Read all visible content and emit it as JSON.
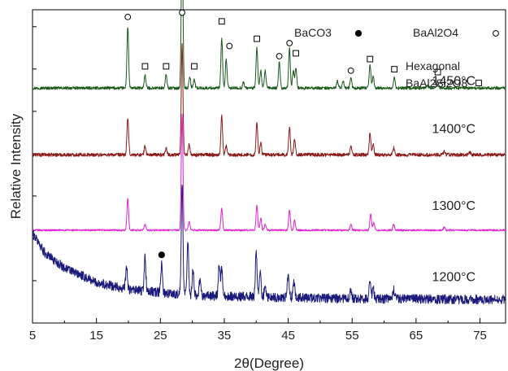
{
  "chart_data": {
    "type": "line",
    "title": "",
    "xlabel": "2θ(Degree)",
    "ylabel": "Relative Intensity",
    "xlim": [
      5,
      79
    ],
    "xticks": [
      5,
      15,
      25,
      35,
      45,
      55,
      65,
      75
    ],
    "grid": false,
    "y_tick_labels": false,
    "series": [
      {
        "name": "1450°C",
        "color": "#1a5a1a",
        "baseline": 8.1,
        "noise": 0.05,
        "peaks": [
          [
            19.9,
            2.1
          ],
          [
            22.6,
            0.45
          ],
          [
            25.9,
            0.45
          ],
          [
            28.4,
            5.55
          ],
          [
            29.6,
            0.4
          ],
          [
            30.3,
            0.3
          ],
          [
            34.6,
            1.7
          ],
          [
            35.3,
            1.0
          ],
          [
            38.0,
            0.2
          ],
          [
            40.1,
            1.4
          ],
          [
            40.7,
            0.6
          ],
          [
            41.4,
            0.6
          ],
          [
            43.6,
            0.9
          ],
          [
            45.2,
            1.35
          ],
          [
            45.8,
            0.6
          ],
          [
            46.2,
            0.7
          ],
          [
            52.7,
            0.25
          ],
          [
            53.6,
            0.25
          ],
          [
            54.8,
            0.35
          ],
          [
            57.8,
            0.8
          ],
          [
            58.3,
            0.4
          ],
          [
            61.6,
            0.35
          ],
          [
            66.8,
            0.1
          ],
          [
            68.4,
            0.2
          ]
        ]
      },
      {
        "name": "1400°C",
        "color": "#8b1a1a",
        "baseline": 5.8,
        "noise": 0.06,
        "peaks": [
          [
            19.9,
            1.25
          ],
          [
            22.6,
            0.3
          ],
          [
            25.9,
            0.25
          ],
          [
            28.4,
            3.8
          ],
          [
            29.5,
            0.35
          ],
          [
            34.6,
            1.35
          ],
          [
            35.3,
            0.3
          ],
          [
            40.1,
            1.1
          ],
          [
            40.7,
            0.4
          ],
          [
            45.2,
            0.95
          ],
          [
            46.0,
            0.55
          ],
          [
            54.8,
            0.3
          ],
          [
            57.8,
            0.75
          ],
          [
            58.3,
            0.35
          ],
          [
            61.5,
            0.25
          ],
          [
            69.4,
            0.1
          ],
          [
            73.4,
            0.1
          ]
        ]
      },
      {
        "name": "1300°C",
        "color": "#e020d0",
        "baseline": 3.2,
        "noise": 0.03,
        "peaks": [
          [
            19.9,
            1.1
          ],
          [
            22.6,
            0.2
          ],
          [
            28.4,
            4.0
          ],
          [
            29.5,
            0.3
          ],
          [
            34.6,
            0.75
          ],
          [
            40.1,
            0.85
          ],
          [
            40.7,
            0.4
          ],
          [
            41.4,
            0.2
          ],
          [
            45.2,
            0.7
          ],
          [
            46.0,
            0.35
          ],
          [
            54.8,
            0.2
          ],
          [
            57.9,
            0.55
          ],
          [
            58.4,
            0.25
          ],
          [
            61.5,
            0.2
          ],
          [
            69.4,
            0.1
          ]
        ]
      },
      {
        "name": "1200°C",
        "color": "#1a1a7a",
        "baseline": 0.8,
        "noise": 0.16,
        "background": [
          [
            5,
            2.3
          ],
          [
            7,
            1.6
          ],
          [
            10,
            1.1
          ],
          [
            15,
            0.6
          ],
          [
            20,
            0.35
          ],
          [
            30,
            0.15
          ],
          [
            50,
            0.05
          ],
          [
            79,
            0
          ]
        ],
        "peaks": [
          [
            19.7,
            0.8
          ],
          [
            22.6,
            1.2
          ],
          [
            25.2,
            1.0
          ],
          [
            28.4,
            3.8
          ],
          [
            29.3,
            1.8
          ],
          [
            30.1,
            0.9
          ],
          [
            31.2,
            0.6
          ],
          [
            34.2,
            1.1
          ],
          [
            34.6,
            0.95
          ],
          [
            40.0,
            1.6
          ],
          [
            40.6,
            0.9
          ],
          [
            41.4,
            0.5
          ],
          [
            45.0,
            0.8
          ],
          [
            45.9,
            0.5
          ],
          [
            54.8,
            0.3
          ],
          [
            57.8,
            0.7
          ],
          [
            58.3,
            0.4
          ],
          [
            61.5,
            0.3
          ]
        ]
      }
    ],
    "series_labels": [
      {
        "series": "1450°C",
        "x": 67.5,
        "y": 8.2
      },
      {
        "series": "1400°C",
        "x": 67.5,
        "y": 6.55
      },
      {
        "series": "1300°C",
        "x": 67.5,
        "y": 3.9
      },
      {
        "series": "1200°C",
        "x": 67.5,
        "y": 1.45
      }
    ],
    "ylim": [
      0,
      10.8
    ],
    "legend": [
      {
        "label": "BaCO3",
        "marker": "filled-circle"
      },
      {
        "label": "BaAl2O4",
        "marker": "open-circle"
      },
      {
        "label": "Hexagonal",
        "marker": "none"
      },
      {
        "label": "BaAl2Si2O8",
        "marker": "open-square"
      }
    ],
    "legend_placement": "top-right",
    "annotations": [
      {
        "marker": "open-circle",
        "x": 19.9,
        "y": 10.55
      },
      {
        "marker": "open-circle",
        "x": 28.4,
        "y": 13.9
      },
      {
        "marker": "open-circle",
        "x": 35.8,
        "y": 9.55
      },
      {
        "marker": "open-circle",
        "x": 43.6,
        "y": 9.2
      },
      {
        "marker": "open-circle",
        "x": 45.2,
        "y": 9.65
      },
      {
        "marker": "open-circle",
        "x": 54.8,
        "y": 8.7
      },
      {
        "marker": "open-square",
        "x": 22.6,
        "y": 8.85
      },
      {
        "marker": "open-square",
        "x": 25.9,
        "y": 8.85
      },
      {
        "marker": "open-square",
        "x": 30.3,
        "y": 8.85
      },
      {
        "marker": "open-square",
        "x": 34.6,
        "y": 10.4
      },
      {
        "marker": "open-square",
        "x": 40.1,
        "y": 9.8
      },
      {
        "marker": "open-square",
        "x": 46.2,
        "y": 9.3
      },
      {
        "marker": "open-square",
        "x": 57.8,
        "y": 9.1
      },
      {
        "marker": "open-square",
        "x": 61.6,
        "y": 8.75
      },
      {
        "marker": "open-square",
        "x": 68.4,
        "y": 8.65
      },
      {
        "marker": "filled-circle",
        "x": 25.2,
        "y": 2.35
      }
    ]
  }
}
